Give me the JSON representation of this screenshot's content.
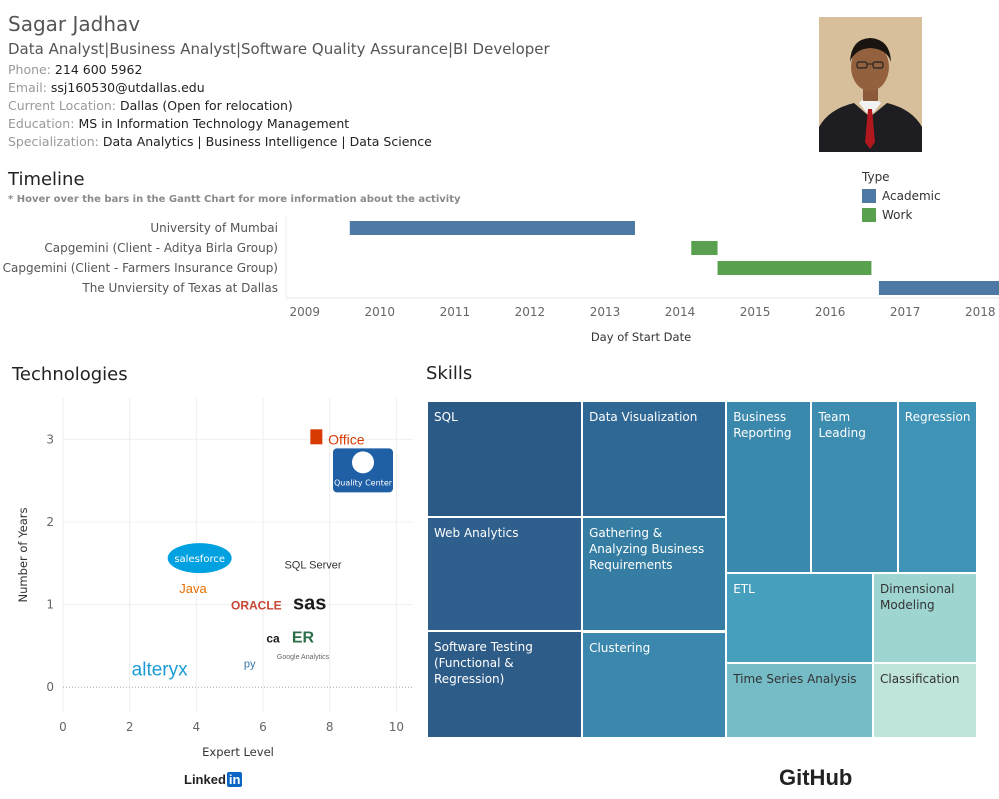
{
  "profile": {
    "name": "Sagar Jadhav",
    "headline": "Data Analyst|Business Analyst|Software Quality Assurance|BI Developer",
    "phone_label": "Phone:",
    "phone": "214 600 5962",
    "email_label": "Email:",
    "email": "ssj160530@utdallas.edu",
    "location_label": "Current Location:",
    "location": "Dallas (Open for relocation)",
    "education_label": "Education:",
    "education": "MS in Information Technology Management",
    "specialization_label": "Specialization:",
    "specialization": "Data Analytics | Business Intelligence | Data Science"
  },
  "timeline": {
    "title": "Timeline",
    "note": "* Hover over the bars in the Gantt Chart for more information about the activity",
    "legend_title": "Type",
    "legend": [
      {
        "label": "Academic",
        "color": "#4e79a7"
      },
      {
        "label": "Work",
        "color": "#59a14f"
      }
    ]
  },
  "technologies_title": "Technologies",
  "skills_title": "Skills",
  "footer": {
    "linkedin": "Linked",
    "linkedin_in": "in",
    "github": "GitHub"
  },
  "chart_data": [
    {
      "type": "bar",
      "subtype": "gantt",
      "title": "Timeline",
      "xlabel": "Day of Start Date",
      "ylabel": "",
      "xlim": [
        2008.75,
        2018.25
      ],
      "xticks": [
        2009,
        2010,
        2011,
        2012,
        2013,
        2014,
        2015,
        2016,
        2017,
        2018
      ],
      "categories": [
        "University of Mumbai",
        "Capgemini (Client - Aditya Birla Group)",
        "Capgemini (Client - Farmers Insurance Group)",
        "The Unviersity of Texas at Dallas"
      ],
      "bars": [
        {
          "label": "University of Mumbai",
          "start": 2009.6,
          "end": 2013.4,
          "type": "Academic"
        },
        {
          "label": "Capgemini (Client - Aditya Birla Group)",
          "start": 2014.15,
          "end": 2014.5,
          "type": "Work"
        },
        {
          "label": "Capgemini (Client - Farmers Insurance Group)",
          "start": 2014.5,
          "end": 2016.55,
          "type": "Work"
        },
        {
          "label": "The Unviersity of Texas at Dallas",
          "start": 2016.65,
          "end": 2018.25,
          "type": "Academic"
        }
      ]
    },
    {
      "type": "scatter",
      "title": "Technologies",
      "xlabel": "Expert Level",
      "ylabel": "Number of Years",
      "xlim": [
        0,
        10.5
      ],
      "ylim": [
        -0.3,
        3.5
      ],
      "xticks": [
        0,
        2,
        4,
        6,
        8,
        10
      ],
      "yticks": [
        0,
        1,
        2,
        3
      ],
      "points": [
        {
          "label": "Office",
          "x": 8.5,
          "y": 3,
          "color": "#d83b01"
        },
        {
          "label": "Quality Center",
          "x": 9.0,
          "y": 2.6,
          "color": "#1f5fa6"
        },
        {
          "label": "salesforce",
          "x": 4.1,
          "y": 1.55,
          "color": "#00a1e0"
        },
        {
          "label": "SQL Server",
          "x": 7.5,
          "y": 1.5,
          "color": "#333333"
        },
        {
          "label": "Java",
          "x": 3.9,
          "y": 1.2,
          "color": "#e76f00"
        },
        {
          "label": "ORACLE",
          "x": 5.8,
          "y": 1.0,
          "color": "#c74634"
        },
        {
          "label": "sas",
          "x": 7.4,
          "y": 1.0,
          "color": "#1a1a1a"
        },
        {
          "label": "ca",
          "x": 6.3,
          "y": 0.6,
          "color": "#1a1a1a"
        },
        {
          "label": "ER",
          "x": 7.2,
          "y": 0.6,
          "color": "#2c6e49"
        },
        {
          "label": "Google Analytics",
          "x": 7.2,
          "y": 0.4,
          "color": "#666666"
        },
        {
          "label": "py",
          "x": 5.6,
          "y": 0.3,
          "color": "#3776ab"
        },
        {
          "label": "alteryx",
          "x": 2.9,
          "y": 0.2,
          "color": "#1a9bd7"
        }
      ]
    },
    {
      "type": "treemap",
      "title": "Skills",
      "items": [
        {
          "label": "SQL",
          "color": "#2c5a87"
        },
        {
          "label": "Data Visualization",
          "color": "#2f6795"
        },
        {
          "label": "Business Reporting",
          "color": "#3a89ad"
        },
        {
          "label": "Team Leading",
          "color": "#3d8db1"
        },
        {
          "label": "Regression",
          "color": "#3f93b6"
        },
        {
          "label": "Web Analytics",
          "color": "#2f5f8c"
        },
        {
          "label": "Gathering & Analyzing Business Requirements",
          "color": "#357da3"
        },
        {
          "label": "ETL",
          "color": "#46a0bd"
        },
        {
          "label": "Dimensional Modeling",
          "color": "#9ed5d0"
        },
        {
          "label": "Software Testing (Functional & Regression)",
          "color": "#2e5c88"
        },
        {
          "label": "Clustering",
          "color": "#3b87ad"
        },
        {
          "label": "Time Series Analysis",
          "color": "#75bcc7"
        },
        {
          "label": "Classification",
          "color": "#bfe4d9"
        }
      ]
    }
  ]
}
